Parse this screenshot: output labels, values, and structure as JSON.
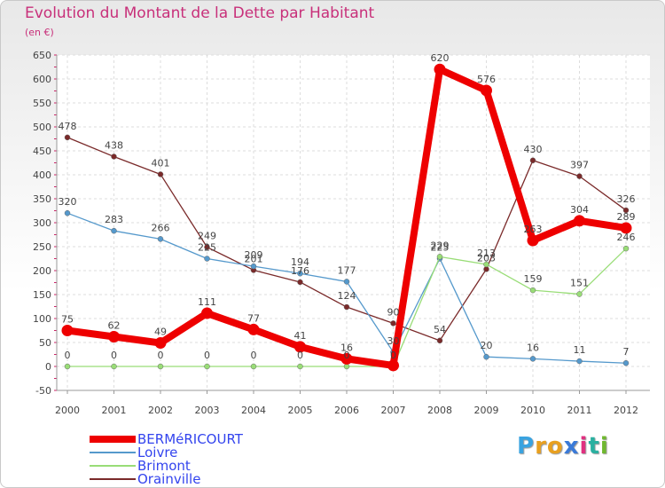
{
  "header": {
    "title": "Evolution du Montant de la Dette par Habitant",
    "unit": "(en €)"
  },
  "logo": {
    "letters": [
      "P",
      "r",
      "o",
      "x",
      "i",
      "t",
      "i"
    ],
    "colors": [
      "#3aa3e0",
      "#e8a020",
      "#e8a020",
      "#3a7ad8",
      "#e03080",
      "#2ab0a0",
      "#70b830"
    ]
  },
  "chart_data": {
    "type": "line",
    "title": "Evolution du Montant de la Dette par Habitant",
    "ylabel": "(en €)",
    "x": [
      "2000",
      "2001",
      "2002",
      "2003",
      "2004",
      "2005",
      "2006",
      "2007",
      "2008",
      "2009",
      "2010",
      "2011",
      "2012"
    ],
    "ylim": [
      -50,
      650
    ],
    "yticks": [
      -50,
      0,
      50,
      100,
      150,
      200,
      250,
      300,
      350,
      400,
      450,
      500,
      550,
      600,
      650
    ],
    "grid": true,
    "legend_position": "bottom-left",
    "series": [
      {
        "name": "BERMéRICOURT",
        "color": "#ee0000",
        "values": [
          75,
          62,
          49,
          111,
          77,
          41,
          16,
          2,
          620,
          576,
          263,
          304,
          289
        ],
        "labels": [
          "75",
          "62",
          "49",
          "111",
          "77",
          "41",
          "16",
          "",
          "620",
          "576",
          "263",
          "304",
          "289"
        ]
      },
      {
        "name": "Loivre",
        "color": "#5599cc",
        "values": [
          320,
          283,
          266,
          225,
          209,
          194,
          177,
          30,
          225,
          20,
          16,
          11,
          7
        ],
        "labels": [
          "320",
          "283",
          "266",
          "225",
          "209",
          "194",
          "177",
          "30",
          "225",
          "20",
          "16",
          "11",
          "7"
        ]
      },
      {
        "name": "Brimont",
        "color": "#99dd77",
        "values": [
          0,
          0,
          0,
          0,
          0,
          0,
          0,
          0,
          229,
          213,
          159,
          151,
          246
        ],
        "labels": [
          "0",
          "0",
          "0",
          "0",
          "0",
          "0",
          "0",
          "0",
          "229",
          "213",
          "159",
          "151",
          "246"
        ]
      },
      {
        "name": "Orainville",
        "color": "#7a2a2a",
        "values": [
          478,
          438,
          401,
          249,
          201,
          176,
          124,
          90,
          54,
          203,
          430,
          397,
          326
        ],
        "labels": [
          "478",
          "438",
          "401",
          "249",
          "201",
          "176",
          "124",
          "90",
          "54",
          "203",
          "430",
          "397",
          "326"
        ]
      }
    ]
  }
}
